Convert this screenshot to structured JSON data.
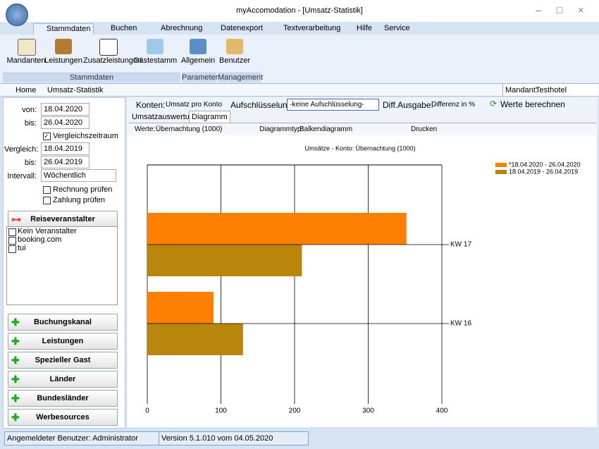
{
  "window": {
    "title": "myAccomodation - [Umsatz-Statistik]"
  },
  "ribbon": {
    "tabs": [
      "Stammdaten",
      "Buchen",
      "Abrechnung",
      "Datenexport",
      "Textverarbeitung",
      "Hilfe",
      "Service"
    ],
    "buttons": [
      "Mandanten",
      "Leistungen",
      "Zusatzleistungen",
      "Gästestamm",
      "Allgemein",
      "Benutzer"
    ],
    "groups": [
      "Stammdaten",
      "Parameter",
      "Management"
    ]
  },
  "breadcrumb": [
    "Home",
    "Umsatz-Statistik"
  ],
  "mandant": {
    "label": "Mandant:",
    "value": "Testhotel"
  },
  "filters": [
    {
      "label": "von:",
      "value": "18.04.2020"
    },
    {
      "label": "bis:",
      "value": "26.04.2020"
    },
    {
      "label": "Vergleich:",
      "value": "18.04.2019"
    },
    {
      "label": "bis:",
      "value": "26.04.2019"
    },
    {
      "label": "Intervall:",
      "value": "Wöchentlich"
    }
  ],
  "checkboxes": [
    "Vergleichszeitraum",
    "Rechnung prüfen",
    "Zahlung prüfen"
  ],
  "reiseveranstalter": {
    "title": "Reiseveranstalter",
    "items": [
      "Kein Veranstalter",
      "booking.com",
      "tui"
    ]
  },
  "sections": [
    "Buchungskanal",
    "Leistungen",
    "Spezieller Gast",
    "Länder",
    "Bundesländer",
    "Werbesources"
  ],
  "toolbar": {
    "konten_label": "Konten:",
    "konten": "Umsatz pro Konto",
    "aufschl_label": "Aufschlüsselung:",
    "aufschl": "-keine Aufschlüsselung-",
    "diff_label": "Diff.Ausgabe:",
    "diff": "Differenz in %",
    "button": "Werte berechnen"
  },
  "tabs": [
    "Umsatzauswertung",
    "Diagramm"
  ],
  "chart_toolbar": {
    "werte_label": "Werte:",
    "werte": "Übernachtung (1000)",
    "typ_label": "Diagrammtyp:",
    "typ": "Balkendiagramm",
    "print": "Drucken"
  },
  "chart_data": {
    "type": "hbar",
    "title": "Umsätze - Konto: Übernachtung (1000)",
    "categories": [
      "KW 17",
      "KW 16"
    ],
    "series": [
      {
        "name": "*18.04.2020 - 26.04.2020",
        "color": "#ff8000",
        "values": [
          352,
          90
        ]
      },
      {
        "name": "18.04.2019 - 26.04.2019",
        "color": "#b8860b",
        "values": [
          210,
          130
        ]
      }
    ],
    "xlim": [
      0,
      400
    ],
    "xticks": [
      0,
      100,
      200,
      300,
      400
    ],
    "grid": true
  },
  "status": [
    "Angemeldeter Benutzer: Administrator",
    "Version 5.1.010 vom 04.05.2020"
  ]
}
